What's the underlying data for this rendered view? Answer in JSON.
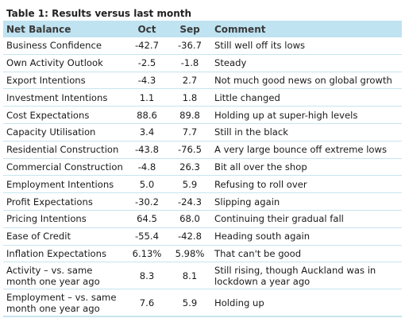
{
  "title": "Table 1: Results versus last month",
  "columns": {
    "label": "Net Balance",
    "oct": "Oct",
    "sep": "Sep",
    "comment": "Comment"
  },
  "rows": [
    {
      "label": "Business Confidence",
      "oct": "-42.7",
      "sep": "-36.7",
      "comment": "Still well off its lows"
    },
    {
      "label": "Own Activity Outlook",
      "oct": "-2.5",
      "sep": "-1.8",
      "comment": "Steady"
    },
    {
      "label": "Export Intentions",
      "oct": "-4.3",
      "sep": "2.7",
      "comment": "Not much good news on global growth"
    },
    {
      "label": "Investment Intentions",
      "oct": "1.1",
      "sep": "1.8",
      "comment": "Little changed"
    },
    {
      "label": "Cost Expectations",
      "oct": "88.6",
      "sep": "89.8",
      "comment": "Holding up at super-high levels"
    },
    {
      "label": "Capacity Utilisation",
      "oct": "3.4",
      "sep": "7.7",
      "comment": "Still in the black"
    },
    {
      "label": "Residential Construction",
      "oct": "-43.8",
      "sep": "-76.5",
      "comment": "A very large bounce off extreme lows"
    },
    {
      "label": "Commercial Construction",
      "oct": "-4.8",
      "sep": "26.3",
      "comment": "Bit all over the shop"
    },
    {
      "label": "Employment Intentions",
      "oct": "5.0",
      "sep": "5.9",
      "comment": "Refusing to roll over"
    },
    {
      "label": "Profit Expectations",
      "oct": "-30.2",
      "sep": "-24.3",
      "comment": "Slipping again"
    },
    {
      "label": "Pricing Intentions",
      "oct": "64.5",
      "sep": "68.0",
      "comment": "Continuing their gradual fall"
    },
    {
      "label": "Ease of Credit",
      "oct": "-55.4",
      "sep": "-42.8",
      "comment": "Heading south again"
    },
    {
      "label": "Inflation Expectations",
      "oct": "6.13%",
      "sep": "5.98%",
      "comment": "That can't be good"
    },
    {
      "label": "Activity – vs. same month one year ago",
      "oct": "8.3",
      "sep": "8.1",
      "comment": "Still rising, though Auckland was in lockdown a year ago"
    },
    {
      "label": "Employment – vs. same month one year ago",
      "oct": "7.6",
      "sep": "5.9",
      "comment": "Holding up"
    }
  ]
}
